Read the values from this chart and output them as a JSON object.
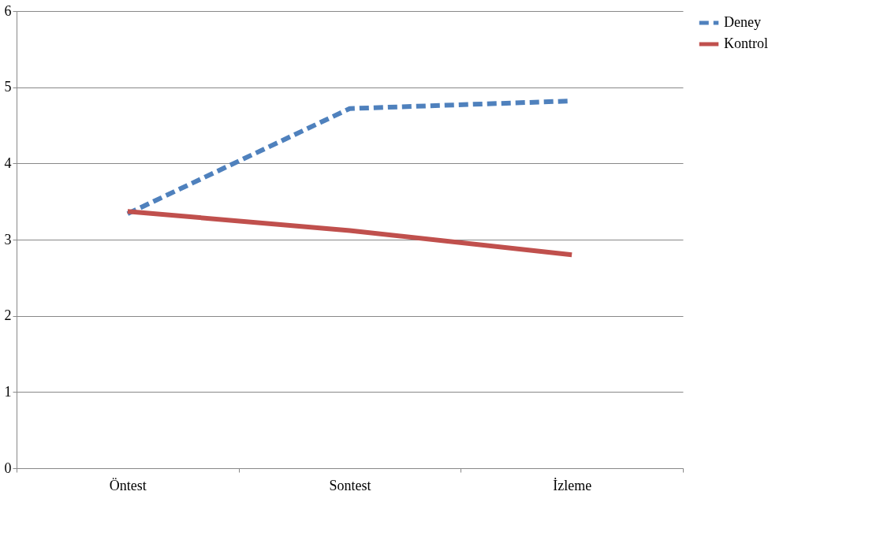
{
  "chart_data": {
    "type": "line",
    "categories": [
      "Öntest",
      "Sontest",
      "İzleme"
    ],
    "series": [
      {
        "name": "Deney",
        "color": "#4f81bd",
        "line_style": "dashed",
        "values": [
          3.34,
          4.72,
          4.82
        ]
      },
      {
        "name": "Kontrol",
        "color": "#c0504d",
        "line_style": "solid",
        "values": [
          3.37,
          3.12,
          2.8
        ]
      }
    ],
    "ylim": [
      0,
      6
    ],
    "yticks": [
      0,
      1,
      2,
      3,
      4,
      5,
      6
    ],
    "grid": "y",
    "legend": "right"
  }
}
